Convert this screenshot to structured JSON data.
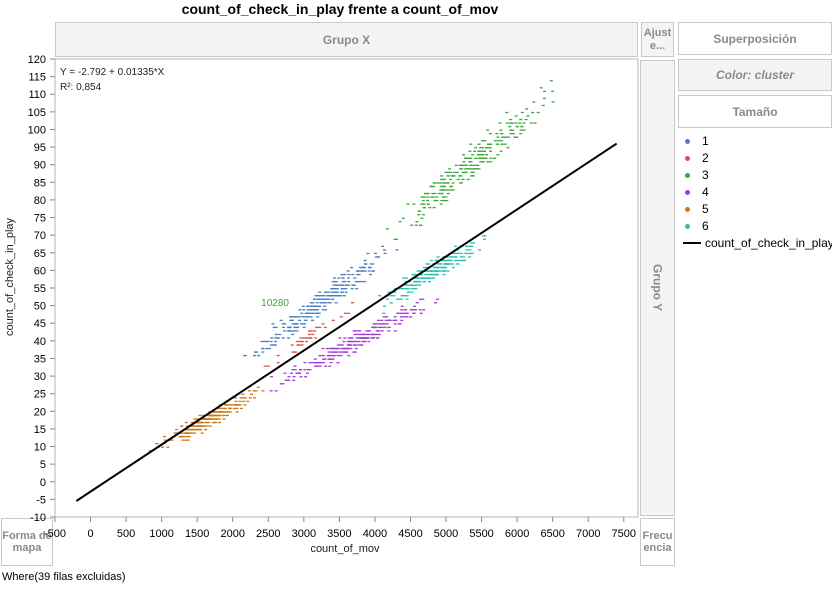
{
  "chart_data": {
    "type": "scatter",
    "title": "count_of_check_in_play frente a count_of_mov",
    "xlabel": "count_of_mov",
    "ylabel": "count_of_check_in_play",
    "xlim": [
      -500,
      7700
    ],
    "ylim": [
      -10,
      120
    ],
    "xticks": [
      "-500",
      "0",
      "500",
      "1000",
      "1500",
      "2000",
      "2500",
      "3000",
      "3500",
      "4000",
      "4500",
      "5000",
      "5500",
      "6000",
      "6500",
      "7000",
      "7500"
    ],
    "yticks": [
      "-10",
      "-5",
      "0",
      "5",
      "10",
      "15",
      "20",
      "25",
      "30",
      "35",
      "40",
      "45",
      "50",
      "55",
      "60",
      "65",
      "70",
      "75",
      "80",
      "85",
      "90",
      "95",
      "100",
      "105",
      "110",
      "115",
      "120"
    ],
    "fit_equation": "Y = -2.792 + 0.01335*X",
    "r_squared": "R²: 0,854",
    "fit": {
      "intercept": -2.792,
      "slope": 0.01335,
      "x_range": [
        -200,
        7400
      ]
    },
    "annotation": {
      "text": "10280",
      "x": 2400,
      "y": 51
    },
    "series": [
      {
        "name": "1",
        "color": "#4a7fc1",
        "center_x": 3200,
        "spread_x": 1300,
        "ratio": 0.0158,
        "spread_y": 5
      },
      {
        "name": "2",
        "color": "#d9534f",
        "center_x": 3000,
        "spread_x": 800,
        "ratio": 0.0135,
        "spread_y": 3
      },
      {
        "name": "3",
        "color": "#3aa83a",
        "center_x": 5300,
        "spread_x": 1400,
        "ratio": 0.017,
        "spread_y": 7
      },
      {
        "name": "4",
        "color": "#a23ed1",
        "center_x": 3700,
        "spread_x": 1400,
        "ratio": 0.0108,
        "spread_y": 4
      },
      {
        "name": "5",
        "color": "#c97a1a",
        "center_x": 1600,
        "spread_x": 900,
        "ratio": 0.011,
        "spread_y": 3
      },
      {
        "name": "6",
        "color": "#2fbfb3",
        "center_x": 4800,
        "spread_x": 900,
        "ratio": 0.0125,
        "spread_y": 4
      }
    ],
    "line_series": {
      "name": "count_of_check_in_play",
      "color": "#000000"
    }
  },
  "zones": {
    "grupo_x": "Grupo X",
    "grupo_y": "Grupo Y",
    "ajuste": "Ajust e...",
    "superposicion": "Superposición",
    "color": "Color: cluster",
    "tamano": "Tamaño",
    "forma_mapa": "Forma de mapa",
    "frecuencia": "Frecu encia"
  },
  "status": "Where(39 filas excluidas)"
}
